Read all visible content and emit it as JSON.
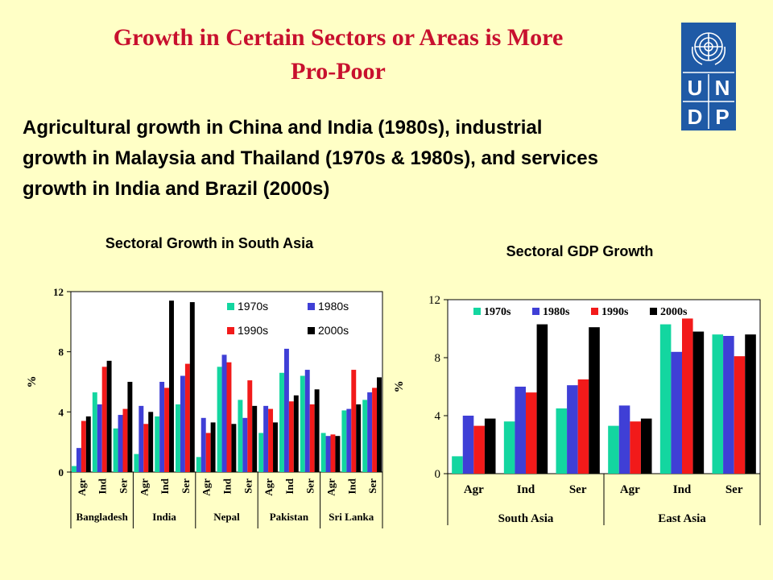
{
  "slide": {
    "title_line1": "Growth in Certain Sectors or Areas is More",
    "title_line2": "Pro-Poor",
    "subtitle_line1": "Agricultural growth in China and India (1980s), industrial",
    "subtitle_line2": "growth in Malaysia and Thailand (1970s & 1980s), and services",
    "subtitle_line3": "growth in India and Brazil (2000s)"
  },
  "logo": {
    "letters": [
      "U",
      "N",
      "D",
      "P"
    ],
    "color": "#1F5AA6"
  },
  "colors": {
    "1970s": "#13D6A0",
    "1980s": "#3F3FD6",
    "1990s": "#F21A1A",
    "2000s": "#000000",
    "background": "#FFFFC6",
    "title": "#C8102E"
  },
  "chart_data": [
    {
      "type": "bar",
      "title": "Sectoral Growth in South Asia",
      "ylabel": "%",
      "ylim": [
        0,
        12
      ],
      "yticks": [
        0,
        4,
        8,
        12
      ],
      "legend_position": "top-right",
      "categories": [
        "Agr",
        "Ind",
        "Ser",
        "Agr",
        "Ind",
        "Ser",
        "Agr",
        "Ind",
        "Ser",
        "Agr",
        "Ind",
        "Ser",
        "Agr",
        "Ind",
        "Ser"
      ],
      "groups": [
        {
          "label": "Bangladesh",
          "span": 3
        },
        {
          "label": "India",
          "span": 3
        },
        {
          "label": "Nepal",
          "span": 3
        },
        {
          "label": "Pakistan",
          "span": 3
        },
        {
          "label": "Sri Lanka",
          "span": 3
        }
      ],
      "series": [
        {
          "name": "1970s",
          "values": [
            0.4,
            5.3,
            2.9,
            1.2,
            3.7,
            4.5,
            1.0,
            7.0,
            4.8,
            2.6,
            6.6,
            6.4,
            2.6,
            4.1,
            4.8
          ]
        },
        {
          "name": "1980s",
          "values": [
            1.6,
            4.5,
            3.8,
            4.4,
            6.0,
            6.4,
            3.6,
            7.8,
            3.6,
            4.4,
            8.2,
            6.8,
            2.4,
            4.2,
            5.3
          ]
        },
        {
          "name": "1990s",
          "values": [
            3.4,
            7.0,
            4.2,
            3.2,
            5.6,
            7.2,
            2.6,
            7.3,
            6.1,
            4.2,
            4.7,
            4.5,
            2.5,
            6.8,
            5.6
          ]
        },
        {
          "name": "2000s",
          "values": [
            3.7,
            7.4,
            6.0,
            4.0,
            11.4,
            11.3,
            3.3,
            3.2,
            4.4,
            3.3,
            5.1,
            5.5,
            2.4,
            4.5,
            6.3
          ]
        }
      ]
    },
    {
      "type": "bar",
      "title": "Sectoral GDP Growth",
      "ylabel": "%",
      "ylim": [
        0,
        12
      ],
      "yticks": [
        0,
        4,
        8,
        12
      ],
      "legend_position": "top",
      "categories": [
        "Agr",
        "Ind",
        "Ser",
        "Agr",
        "Ind",
        "Ser"
      ],
      "groups": [
        {
          "label": "South Asia",
          "span": 3
        },
        {
          "label": "East Asia",
          "span": 3
        }
      ],
      "series": [
        {
          "name": "1970s",
          "values": [
            1.2,
            3.6,
            4.5,
            3.3,
            10.3,
            9.6
          ]
        },
        {
          "name": "1980s",
          "values": [
            4.0,
            6.0,
            6.1,
            4.7,
            8.4,
            9.5
          ]
        },
        {
          "name": "1990s",
          "values": [
            3.3,
            5.6,
            6.5,
            3.6,
            10.7,
            8.1
          ]
        },
        {
          "name": "2000s",
          "values": [
            3.8,
            10.3,
            10.1,
            3.8,
            9.8,
            9.6
          ]
        }
      ]
    }
  ]
}
